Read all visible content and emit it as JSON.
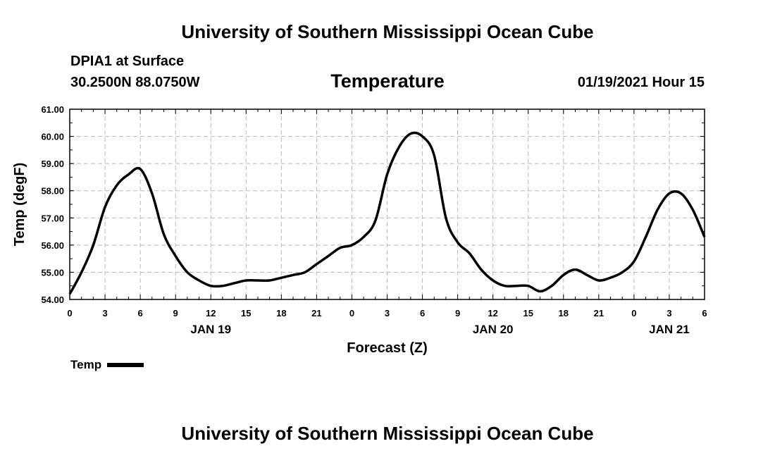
{
  "header": {
    "title": "University of Southern Mississippi Ocean Cube",
    "station": "DPIA1 at Surface",
    "coords": "30.2500N 88.0750W",
    "variable": "Temperature",
    "datetime": "01/19/2021 Hour 15",
    "footer_title": "University of Southern Mississippi Ocean Cube"
  },
  "legend": {
    "label": "Temp",
    "color": "#000000"
  },
  "chart_data": {
    "type": "line",
    "title": "Temperature",
    "xlabel": "Forecast (Z)",
    "ylabel": "Temp (degF)",
    "ylim": [
      54.0,
      61.0
    ],
    "xlim": [
      0,
      54
    ],
    "y_ticks": [
      "54.00",
      "55.00",
      "56.00",
      "57.00",
      "58.00",
      "59.00",
      "60.00",
      "61.00"
    ],
    "x_tick_labels": [
      "0",
      "3",
      "6",
      "9",
      "12",
      "15",
      "18",
      "21",
      "0",
      "3",
      "6",
      "9",
      "12",
      "15",
      "18",
      "21",
      "0",
      "3",
      "6"
    ],
    "day_labels": [
      {
        "label": "JAN 19",
        "hour": 12
      },
      {
        "label": "JAN 20",
        "hour": 36
      },
      {
        "label": "JAN 21",
        "hour": 51
      }
    ],
    "grid": true,
    "series": [
      {
        "name": "Temp",
        "color": "#000000",
        "x": [
          0,
          1,
          2,
          3,
          4,
          5,
          6,
          7,
          8,
          9,
          10,
          11,
          12,
          13,
          14,
          15,
          16,
          17,
          18,
          19,
          20,
          21,
          22,
          23,
          24,
          25,
          26,
          27,
          28,
          29,
          30,
          31,
          32,
          33,
          34,
          35,
          36,
          37,
          38,
          39,
          40,
          41,
          42,
          43,
          44,
          45,
          46,
          47,
          48,
          49,
          50,
          51,
          52,
          53,
          54
        ],
        "values": [
          54.2,
          55.0,
          56.0,
          57.4,
          58.2,
          58.6,
          58.8,
          57.9,
          56.4,
          55.6,
          55.0,
          54.7,
          54.5,
          54.5,
          54.6,
          54.7,
          54.7,
          54.7,
          54.8,
          54.9,
          55.0,
          55.3,
          55.6,
          55.9,
          56.0,
          56.3,
          56.9,
          58.6,
          59.6,
          60.1,
          60.0,
          59.3,
          57.0,
          56.1,
          55.7,
          55.1,
          54.7,
          54.5,
          54.5,
          54.5,
          54.3,
          54.5,
          54.9,
          55.1,
          54.9,
          54.7,
          54.8,
          55.0,
          55.4,
          56.3,
          57.3,
          57.9,
          57.9,
          57.3,
          56.3
        ]
      }
    ]
  }
}
